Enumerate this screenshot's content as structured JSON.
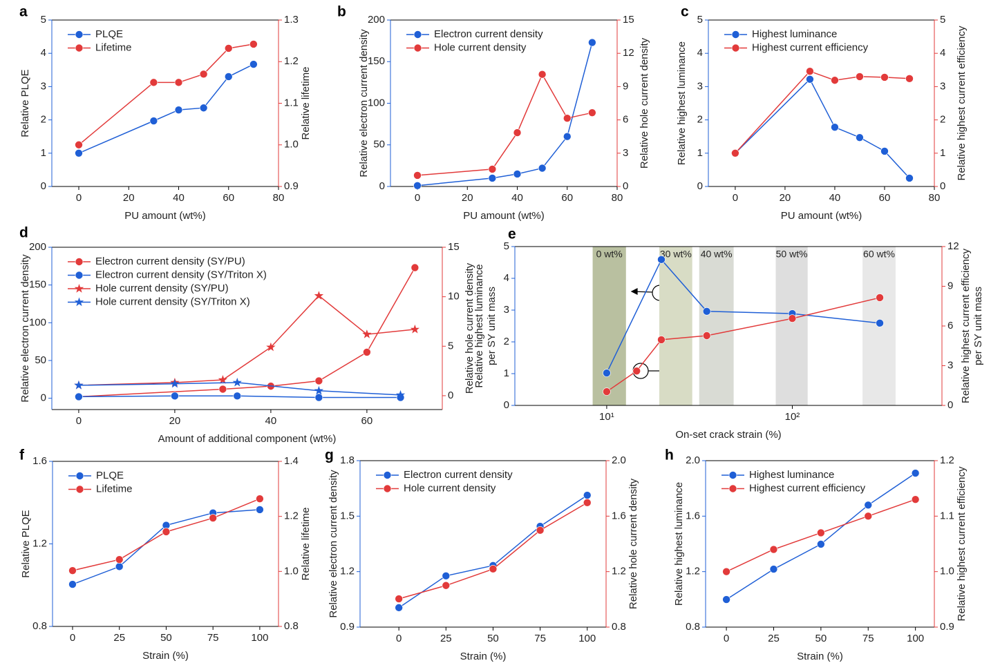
{
  "chart_data": [
    {
      "type": "line",
      "label": "a",
      "xlabel": "PU amount (wt%)",
      "ylabel": "Relative PLQE",
      "y2label": "Relative lifetime",
      "xlim": [
        -10.8,
        80
      ],
      "xticks": [
        0,
        20,
        40,
        60,
        80
      ],
      "ylim": [
        0,
        5
      ],
      "yticks": [
        0,
        1,
        2,
        3,
        4,
        5
      ],
      "y2lim": [
        0.9,
        1.3
      ],
      "y2ticks": [
        0.9,
        {
          "value": 1,
          "label": "1.0"
        },
        1.1,
        1.2,
        1.3
      ],
      "y_axis_color": "#1f5fd6",
      "y2_axis_color": "#e23a3a",
      "legend": "upper left",
      "x": [
        0,
        30,
        40,
        50,
        60,
        70
      ],
      "series": [
        {
          "name": "PLQE",
          "color": "#1f5fd6",
          "marker": "circle",
          "values": [
            1.0,
            1.97,
            2.3,
            2.36,
            3.3,
            3.67
          ]
        },
        {
          "name": "Lifetime",
          "color": "#e23a3a",
          "marker": "circle",
          "axis": "y2",
          "values": [
            1.0,
            1.15,
            1.15,
            1.17,
            1.232,
            1.242
          ]
        }
      ]
    },
    {
      "type": "line",
      "label": "b",
      "xlabel": "PU amount (wt%)",
      "ylabel": "Relative electron current density",
      "y2label": "Relative hole current density",
      "xlim": [
        -10.8,
        80
      ],
      "xticks": [
        0,
        20,
        40,
        60,
        80
      ],
      "ylim": [
        0,
        200
      ],
      "yticks": [
        0,
        50,
        100,
        150,
        200
      ],
      "y2lim": [
        0,
        15
      ],
      "y2ticks": [
        0,
        3,
        6,
        9,
        12,
        15
      ],
      "y_axis_color": "#1f5fd6",
      "y2_axis_color": "#e23a3a",
      "legend": "upper left",
      "x": [
        0,
        30,
        40,
        50,
        60,
        70
      ],
      "series": [
        {
          "name": "Electron current density",
          "color": "#1f5fd6",
          "marker": "circle",
          "values": [
            1,
            10,
            15,
            22,
            60,
            173
          ]
        },
        {
          "name": "Hole current density",
          "color": "#e23a3a",
          "marker": "circle",
          "axis": "y2",
          "values": [
            1.0,
            1.56,
            4.85,
            10.1,
            6.15,
            6.65
          ]
        }
      ]
    },
    {
      "type": "line",
      "label": "c",
      "xlabel": "PU amount (wt%)",
      "ylabel": "Relative highest luminance",
      "y2label": "Relative highest current efficiency",
      "xlim": [
        -10.8,
        80
      ],
      "xticks": [
        0,
        20,
        40,
        60,
        80
      ],
      "ylim": [
        0,
        5
      ],
      "yticks": [
        0,
        1,
        2,
        3,
        4,
        5
      ],
      "y2lim": [
        0,
        5
      ],
      "y2ticks": [
        0,
        1,
        2,
        3,
        4,
        5
      ],
      "y_axis_color": "#1f5fd6",
      "y2_axis_color": "#e23a3a",
      "legend": "upper left",
      "x": [
        0,
        30,
        40,
        50,
        60,
        70
      ],
      "series": [
        {
          "name": "Highest luminance",
          "color": "#1f5fd6",
          "marker": "circle",
          "values": [
            1.0,
            3.22,
            1.78,
            1.47,
            1.06,
            0.25
          ]
        },
        {
          "name": "Highest current efficiency",
          "color": "#e23a3a",
          "marker": "circle",
          "axis": "y2",
          "values": [
            1.0,
            3.46,
            3.19,
            3.3,
            3.28,
            3.24
          ]
        }
      ]
    },
    {
      "type": "line",
      "label": "d",
      "xlabel": "Amount of additional component (wt%)",
      "ylabel": "Relative electron current density",
      "y2label": "Relative hole current density",
      "xlim": [
        -5.6,
        75.7
      ],
      "xticks": [
        0,
        20,
        40,
        60
      ],
      "ylim": [
        -15,
        200
      ],
      "yticks": [
        0,
        50,
        100,
        150,
        200
      ],
      "y2lim": [
        -1.4,
        15
      ],
      "y2ticks": [
        0,
        5,
        10,
        15
      ],
      "y_axis_color": "#1f5fd6",
      "y2_axis_color": "#e23a3a",
      "legend": "upper left",
      "series": [
        {
          "name": "Electron current density (SY/PU)",
          "color": "#e23a3a",
          "marker": "circle",
          "x": [
            0,
            30,
            40,
            50,
            60,
            70
          ],
          "values": [
            2,
            12,
            16,
            23,
            61,
            173
          ]
        },
        {
          "name": "Electron current density (SY/Triton X)",
          "color": "#1f5fd6",
          "marker": "circle",
          "x": [
            0,
            20,
            33,
            50,
            67
          ],
          "values": [
            2,
            3,
            3,
            1,
            1
          ]
        },
        {
          "name": "Hole current density (SY/PU)",
          "color": "#e23a3a",
          "marker": "star",
          "axis": "y2",
          "x": [
            0,
            20,
            30,
            40,
            50,
            60,
            70
          ],
          "values": [
            1.05,
            1.33,
            1.6,
            4.9,
            10.1,
            6.2,
            6.7
          ]
        },
        {
          "name": "Hole current density (SY/Triton X)",
          "color": "#1f5fd6",
          "marker": "star",
          "axis": "y2",
          "x": [
            0,
            20,
            33,
            50,
            67
          ],
          "values": [
            1.05,
            1.2,
            1.33,
            0.5,
            0.07
          ]
        }
      ]
    },
    {
      "type": "line",
      "label": "e",
      "xlabel": "On-set crack strain (%)",
      "ylabel": [
        "Relative highest luminance",
        "per SY unit mass"
      ],
      "y2label": [
        "Relative highest current efficiency",
        "per SY unit mass"
      ],
      "xscale": "log",
      "xlim": [
        3.2,
        640
      ],
      "xticks": [
        {
          "value": 10,
          "label": "10¹"
        },
        {
          "value": 100,
          "label": "10²"
        }
      ],
      "ylim": [
        0,
        5
      ],
      "yticks": [
        0,
        1,
        2,
        3,
        4,
        5
      ],
      "y2lim": [
        0,
        12
      ],
      "y2ticks": [
        0,
        3,
        6,
        9,
        12
      ],
      "y_axis_color": "#1f5fd6",
      "y2_axis_color": "#e23a3a",
      "bands": [
        {
          "label": "0 wt%",
          "xrange": [
            8.4,
            12.7
          ],
          "color": "#b9c0a0"
        },
        {
          "label": "30 wt%",
          "xrange": [
            19.2,
            28.9
          ],
          "color": "#d8dcc5"
        },
        {
          "label": "40 wt%",
          "xrange": [
            31.5,
            48.3
          ],
          "color": "#d9dbd4"
        },
        {
          "label": "50 wt%",
          "xrange": [
            81.4,
            121
          ],
          "color": "#dedede"
        },
        {
          "label": "60 wt%",
          "xrange": [
            239,
            360
          ],
          "color": "#e8e8e8"
        }
      ],
      "series": [
        {
          "color": "#1f5fd6",
          "marker": "circle",
          "x": [
            10,
            19.7,
            34.6,
            100,
            296
          ],
          "values": [
            1.02,
            4.59,
            2.96,
            2.89,
            2.59
          ]
        },
        {
          "color": "#e23a3a",
          "marker": "circle",
          "axis": "y2",
          "x": [
            10,
            14.5,
            19.7,
            34.6,
            100,
            296
          ],
          "values": [
            1.04,
            2.6,
            4.96,
            5.27,
            6.57,
            8.14
          ]
        }
      ]
    },
    {
      "type": "line",
      "label": "f",
      "xlabel": "Strain (%)",
      "ylabel": "Relative PLQE",
      "y2label": "Relative lifetime",
      "xlim": [
        -10.7,
        110
      ],
      "xticks": [
        0,
        25,
        50,
        75,
        100
      ],
      "ylim": [
        0.8,
        1.6
      ],
      "yticks": [
        0.8,
        1.2,
        1.6
      ],
      "y2lim": [
        0.8,
        1.4
      ],
      "y2ticks": [
        0.8,
        {
          "value": 1,
          "label": "1.0"
        },
        1.2,
        1.4
      ],
      "y_axis_color": "#1f5fd6",
      "y2_axis_color": "#e23a3a",
      "legend": "upper left",
      "x": [
        0,
        25,
        50,
        75,
        100
      ],
      "series": [
        {
          "name": "PLQE",
          "color": "#1f5fd6",
          "marker": "circle",
          "values": [
            1.004,
            1.09,
            1.29,
            1.35,
            1.366
          ]
        },
        {
          "name": "Lifetime",
          "color": "#e23a3a",
          "marker": "circle",
          "axis": "y2",
          "values": [
            1.003,
            1.043,
            1.144,
            1.194,
            1.264
          ]
        }
      ]
    },
    {
      "type": "line",
      "label": "g",
      "xlabel": "Strain (%)",
      "ylabel": "Relative electron current density",
      "y2label": "Relative hole current density",
      "xlim": [
        -20.6,
        110
      ],
      "xticks": [
        0,
        25,
        50,
        75,
        100
      ],
      "ylim": [
        0.9,
        1.8
      ],
      "yticks": [
        0.9,
        1.2,
        1.5,
        1.8
      ],
      "y2lim": [
        0.8,
        2.0
      ],
      "y2ticks": [
        0.8,
        1.2,
        1.6,
        {
          "value": 2,
          "label": "2.0"
        }
      ],
      "y_axis_color": "#1f5fd6",
      "y2_axis_color": "#e23a3a",
      "legend": "upper left",
      "x": [
        0,
        25,
        50,
        75,
        100
      ],
      "series": [
        {
          "name": "Electron current density",
          "color": "#1f5fd6",
          "marker": "circle",
          "values": [
            1.005,
            1.177,
            1.233,
            1.445,
            1.613
          ]
        },
        {
          "name": "Hole current density",
          "color": "#e23a3a",
          "marker": "circle",
          "axis": "y2",
          "values": [
            1.004,
            1.1,
            1.219,
            1.498,
            1.697
          ]
        }
      ]
    },
    {
      "type": "line",
      "label": "h",
      "xlabel": "Strain (%)",
      "ylabel": "Relative highest luminance",
      "y2label": "Relative highest current efficiency",
      "xlim": [
        -11,
        110
      ],
      "xticks": [
        0,
        25,
        50,
        75,
        100
      ],
      "ylim": [
        0.8,
        2.0
      ],
      "yticks": [
        0.8,
        1.2,
        1.6,
        {
          "value": 2,
          "label": "2.0"
        }
      ],
      "y2lim": [
        0.9,
        1.2
      ],
      "y2ticks": [
        0.9,
        {
          "value": 1,
          "label": "1.0"
        },
        1.1,
        1.2
      ],
      "y_axis_color": "#1f5fd6",
      "y2_axis_color": "#e23a3a",
      "legend": "upper left",
      "x": [
        0,
        25,
        50,
        75,
        100
      ],
      "series": [
        {
          "name": "Highest luminance",
          "color": "#1f5fd6",
          "marker": "circle",
          "values": [
            0.999,
            1.218,
            1.398,
            1.68,
            1.91
          ]
        },
        {
          "name": "Highest current efficiency",
          "color": "#e23a3a",
          "marker": "circle",
          "axis": "y2",
          "values": [
            1.0,
            1.04,
            1.07,
            1.1,
            1.13
          ]
        }
      ]
    }
  ]
}
